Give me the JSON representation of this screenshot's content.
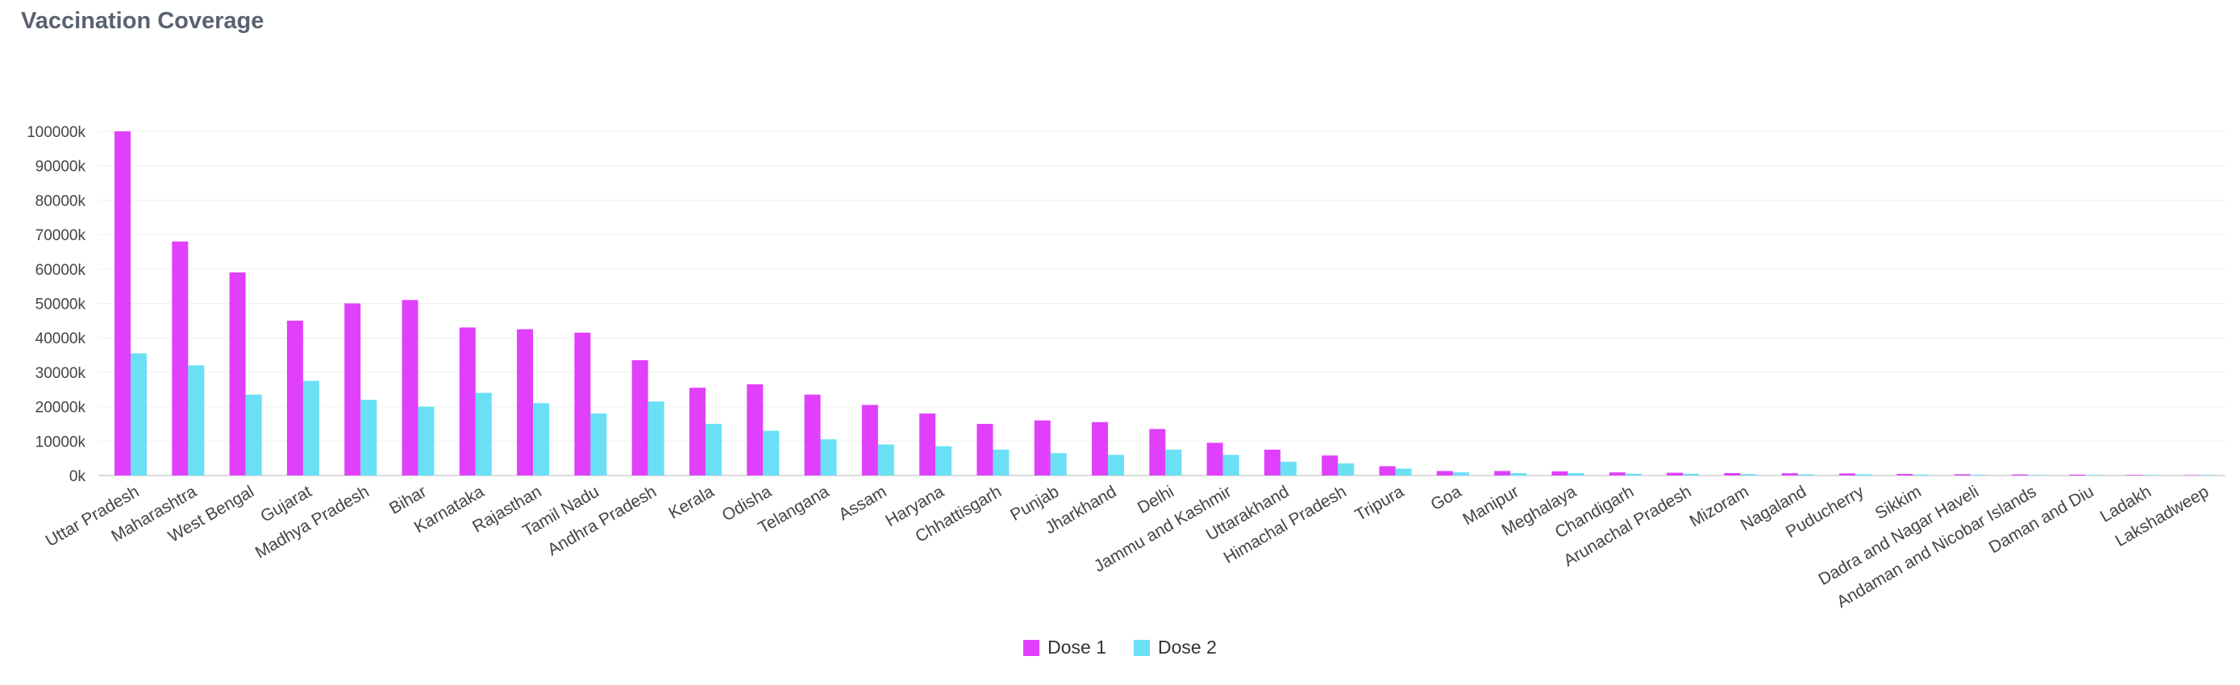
{
  "chart_data": {
    "type": "bar",
    "title": "Vaccination Coverage",
    "xlabel": "",
    "ylabel": "",
    "ylim": [
      0,
      100000
    ],
    "yticks": [
      "0k",
      "10000k",
      "20000k",
      "30000k",
      "40000k",
      "50000k",
      "60000k",
      "70000k",
      "80000k",
      "90000k",
      "100000k"
    ],
    "ytick_values": [
      0,
      10000,
      20000,
      30000,
      40000,
      50000,
      60000,
      70000,
      80000,
      90000,
      100000
    ],
    "categories": [
      "Uttar Pradesh",
      "Maharashtra",
      "West Bengal",
      "Gujarat",
      "Madhya Pradesh",
      "Bihar",
      "Karnataka",
      "Rajasthan",
      "Tamil Nadu",
      "Andhra Pradesh",
      "Kerala",
      "Odisha",
      "Telangana",
      "Assam",
      "Haryana",
      "Chhattisgarh",
      "Punjab",
      "Jharkhand",
      "Delhi",
      "Jammu and Kashmir",
      "Uttarakhand",
      "Himachal Pradesh",
      "Tripura",
      "Goa",
      "Manipur",
      "Meghalaya",
      "Chandigarh",
      "Arunachal Pradesh",
      "Mizoram",
      "Nagaland",
      "Puducherry",
      "Sikkim",
      "Dadra and Nagar Haveli",
      "Andaman and Nicobar Islands",
      "Daman and Diu",
      "Ladakh",
      "Lakshadweep"
    ],
    "series": [
      {
        "name": "Dose 1",
        "color": "#e040fb",
        "values": [
          100000,
          68000,
          59000,
          45000,
          50000,
          51000,
          43000,
          42500,
          41500,
          33500,
          25500,
          26500,
          23500,
          20500,
          18000,
          15000,
          16000,
          15500,
          13500,
          9500,
          7500,
          5800,
          2700,
          1300,
          1300,
          1200,
          900,
          800,
          700,
          650,
          600,
          450,
          350,
          300,
          250,
          150,
          50
        ]
      },
      {
        "name": "Dose 2",
        "color": "#6ae0f5",
        "values": [
          35500,
          32000,
          23500,
          27500,
          22000,
          20000,
          24000,
          21000,
          18000,
          21500,
          15000,
          13000,
          10500,
          9000,
          8500,
          7500,
          6500,
          6000,
          7500,
          6000,
          4000,
          3500,
          2000,
          900,
          700,
          700,
          500,
          500,
          400,
          350,
          350,
          250,
          200,
          150,
          150,
          100,
          30
        ]
      }
    ],
    "legend_position": "bottom-center",
    "grid": true
  }
}
